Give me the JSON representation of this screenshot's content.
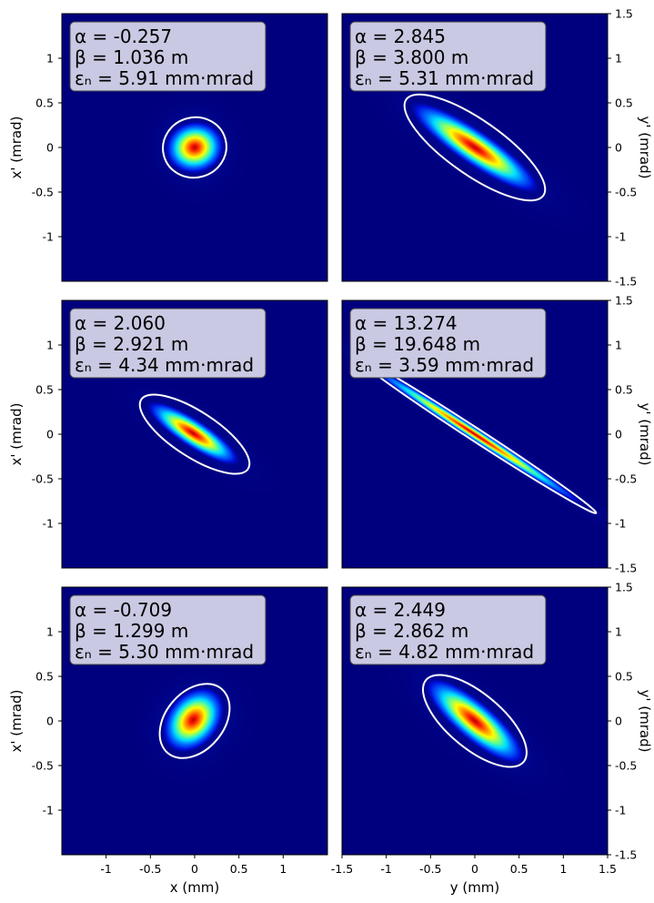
{
  "chart_data": [
    {
      "type": "heatmap",
      "row": 0,
      "col": 0,
      "annotation": [
        "α = -0.257",
        "β = 1.036 m",
        "εₙ = 5.91 mm·mrad"
      ],
      "alpha": -0.257,
      "beta": 1.036,
      "emittance": 5.91,
      "ylabel": "x' (mrad)",
      "xlabel": "",
      "xlim": [
        -1.5,
        1.5
      ],
      "ylim": [
        -1.5,
        1.5
      ],
      "ellipse": {
        "x_half_width": 0.35,
        "xp_half_height": 0.35,
        "tilt": "slight positive"
      }
    },
    {
      "type": "heatmap",
      "row": 0,
      "col": 1,
      "annotation": [
        "α = 2.845",
        "β = 3.800 m",
        "εₙ = 5.31 mm·mrad"
      ],
      "alpha": 2.845,
      "beta": 3.8,
      "emittance": 5.31,
      "ylabel": "y' (mrad)",
      "xlabel": "",
      "xlim": [
        -1.5,
        1.5
      ],
      "ylim": [
        -1.5,
        1.5
      ],
      "ellipse": {
        "x_half_width": 0.65,
        "xp_half_height": 0.5,
        "tilt": "negative"
      }
    },
    {
      "type": "heatmap",
      "row": 1,
      "col": 0,
      "annotation": [
        "α = 2.060",
        "β = 2.921 m",
        "εₙ = 4.34 mm·mrad"
      ],
      "alpha": 2.06,
      "beta": 2.921,
      "emittance": 4.34,
      "ylabel": "x' (mrad)",
      "xlabel": "",
      "xlim": [
        -1.5,
        1.5
      ],
      "ylim": [
        -1.5,
        1.5
      ],
      "ellipse": {
        "x_half_width": 0.52,
        "xp_half_height": 0.4,
        "tilt": "negative"
      }
    },
    {
      "type": "heatmap",
      "row": 1,
      "col": 1,
      "annotation": [
        "α = 13.274",
        "β = 19.648 m",
        "εₙ = 3.59 mm·mrad"
      ],
      "alpha": 13.274,
      "beta": 19.648,
      "emittance": 3.59,
      "ylabel": "y' (mrad)",
      "xlabel": "",
      "xlim": [
        -1.5,
        1.5
      ],
      "ylim": [
        -1.5,
        1.5
      ],
      "ellipse": {
        "x_half_width": 1.22,
        "xp_half_height": 0.82,
        "tilt": "negative"
      }
    },
    {
      "type": "heatmap",
      "row": 2,
      "col": 0,
      "annotation": [
        "α = -0.709",
        "β = 1.299 m",
        "εₙ = 5.30 mm·mrad"
      ],
      "alpha": -0.709,
      "beta": 1.299,
      "emittance": 5.3,
      "ylabel": "x' (mrad)",
      "xlabel": "x (mm)",
      "xlim": [
        -1.5,
        1.5
      ],
      "ylim": [
        -1.5,
        1.5
      ],
      "ellipse": {
        "x_half_width": 0.38,
        "xp_half_height": 0.36,
        "tilt": "positive"
      }
    },
    {
      "type": "heatmap",
      "row": 2,
      "col": 1,
      "annotation": [
        "α = 2.449",
        "β = 2.862 m",
        "εₙ = 4.82 mm·mrad"
      ],
      "alpha": 2.449,
      "beta": 2.862,
      "emittance": 4.82,
      "ylabel": "y' (mrad)",
      "xlabel": "y (mm)",
      "xlim": [
        -1.5,
        1.5
      ],
      "ylim": [
        -1.5,
        1.5
      ],
      "ellipse": {
        "x_half_width": 0.55,
        "xp_half_height": 0.5,
        "tilt": "negative"
      }
    }
  ],
  "axes": {
    "left_yticks": [
      "1",
      "0.5",
      "0",
      "-0.5",
      "-1"
    ],
    "right_yticks": [
      "1.5",
      "1",
      "0.5",
      "0",
      "-0.5",
      "-1",
      "-1.5"
    ],
    "left_xticks": [
      "-1",
      "-0.5",
      "0",
      "0.5",
      "1"
    ],
    "right_xticks": [
      "-1.5",
      "-1",
      "-0.5",
      "0",
      "0.5",
      "1",
      "1.5"
    ]
  },
  "colors": {
    "background": "#00007f",
    "ellipse": "#ffffff",
    "annotation_box": "#c9c9e3",
    "colormap": "jet"
  }
}
